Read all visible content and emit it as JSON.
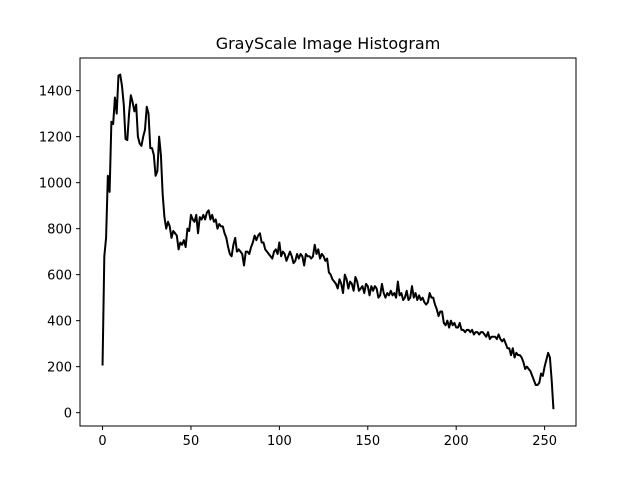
{
  "chart_data": {
    "type": "line",
    "title": "GrayScale Image Histogram",
    "x": [
      0,
      1,
      2,
      3,
      4,
      5,
      6,
      7,
      8,
      9,
      10,
      11,
      12,
      13,
      14,
      15,
      16,
      17,
      18,
      19,
      20,
      21,
      22,
      23,
      24,
      25,
      26,
      27,
      28,
      29,
      30,
      31,
      32,
      33,
      34,
      35,
      36,
      37,
      38,
      39,
      40,
      41,
      42,
      43,
      44,
      45,
      46,
      47,
      48,
      49,
      50,
      51,
      52,
      53,
      54,
      55,
      56,
      57,
      58,
      59,
      60,
      61,
      62,
      63,
      64,
      65,
      66,
      67,
      68,
      69,
      70,
      71,
      72,
      73,
      74,
      75,
      76,
      77,
      78,
      79,
      80,
      81,
      82,
      83,
      84,
      85,
      86,
      87,
      88,
      89,
      90,
      91,
      92,
      93,
      94,
      95,
      96,
      97,
      98,
      99,
      100,
      101,
      102,
      103,
      104,
      105,
      106,
      107,
      108,
      109,
      110,
      111,
      112,
      113,
      114,
      115,
      116,
      117,
      118,
      119,
      120,
      121,
      122,
      123,
      124,
      125,
      126,
      127,
      128,
      129,
      130,
      131,
      132,
      133,
      134,
      135,
      136,
      137,
      138,
      139,
      140,
      141,
      142,
      143,
      144,
      145,
      146,
      147,
      148,
      149,
      150,
      151,
      152,
      153,
      154,
      155,
      156,
      157,
      158,
      159,
      160,
      161,
      162,
      163,
      164,
      165,
      166,
      167,
      168,
      169,
      170,
      171,
      172,
      173,
      174,
      175,
      176,
      177,
      178,
      179,
      180,
      181,
      182,
      183,
      184,
      185,
      186,
      187,
      188,
      189,
      190,
      191,
      192,
      193,
      194,
      195,
      196,
      197,
      198,
      199,
      200,
      201,
      202,
      203,
      204,
      205,
      206,
      207,
      208,
      209,
      210,
      211,
      212,
      213,
      214,
      215,
      216,
      217,
      218,
      219,
      220,
      221,
      222,
      223,
      224,
      225,
      226,
      227,
      228,
      229,
      230,
      231,
      232,
      233,
      234,
      235,
      236,
      237,
      238,
      239,
      240,
      241,
      242,
      243,
      244,
      245,
      246,
      247,
      248,
      249,
      250,
      251,
      252,
      253,
      254,
      255
    ],
    "series": [
      {
        "color": "#000000",
        "values": [
          205,
          680,
          760,
          1030,
          960,
          1265,
          1255,
          1370,
          1300,
          1465,
          1470,
          1420,
          1340,
          1190,
          1185,
          1300,
          1380,
          1350,
          1310,
          1340,
          1200,
          1170,
          1160,
          1200,
          1230,
          1330,
          1300,
          1150,
          1150,
          1120,
          1030,
          1050,
          1200,
          1120,
          950,
          850,
          800,
          830,
          810,
          760,
          790,
          780,
          770,
          710,
          740,
          730,
          750,
          720,
          800,
          790,
          860,
          840,
          830,
          860,
          780,
          850,
          840,
          860,
          840,
          870,
          880,
          840,
          860,
          830,
          840,
          800,
          820,
          810,
          810,
          780,
          760,
          720,
          690,
          680,
          730,
          760,
          700,
          710,
          700,
          690,
          640,
          700,
          700,
          690,
          720,
          740,
          770,
          750,
          770,
          780,
          740,
          740,
          710,
          700,
          690,
          680,
          670,
          700,
          710,
          690,
          740,
          680,
          700,
          690,
          660,
          680,
          700,
          680,
          650,
          660,
          690,
          670,
          690,
          680,
          640,
          690,
          680,
          680,
          670,
          680,
          730,
          690,
          710,
          670,
          690,
          680,
          660,
          670,
          610,
          600,
          580,
          570,
          560,
          540,
          580,
          560,
          520,
          600,
          580,
          540,
          570,
          560,
          530,
          590,
          570,
          530,
          540,
          550,
          520,
          560,
          550,
          510,
          550,
          530,
          550,
          540,
          500,
          510,
          560,
          520,
          500,
          520,
          510,
          530,
          510,
          520,
          500,
          570,
          510,
          520,
          490,
          500,
          530,
          490,
          500,
          550,
          500,
          520,
          490,
          510,
          490,
          500,
          480,
          470,
          480,
          520,
          500,
          500,
          470,
          450,
          420,
          440,
          440,
          390,
          380,
          400,
          370,
          400,
          380,
          390,
          370,
          370,
          390,
          360,
          360,
          350,
          360,
          360,
          350,
          360,
          340,
          350,
          350,
          340,
          350,
          350,
          340,
          330,
          350,
          320,
          330,
          330,
          330,
          320,
          340,
          320,
          310,
          320,
          300,
          280,
          280,
          250,
          280,
          240,
          260,
          250,
          250,
          240,
          220,
          190,
          200,
          190,
          180,
          160,
          140,
          120,
          120,
          130,
          170,
          160,
          200,
          230,
          260,
          240,
          140,
          15
        ]
      }
    ],
    "xlim": [
      -12.75,
      267.75
    ],
    "ylim": [
      -58,
      1542
    ],
    "xticks": [
      0,
      50,
      100,
      150,
      200,
      250
    ],
    "yticks": [
      0,
      200,
      400,
      600,
      800,
      1000,
      1200,
      1400
    ]
  }
}
